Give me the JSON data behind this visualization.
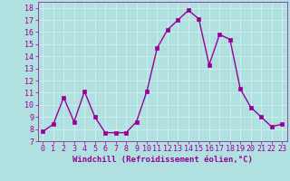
{
  "x": [
    0,
    1,
    2,
    3,
    4,
    5,
    6,
    7,
    8,
    9,
    10,
    11,
    12,
    13,
    14,
    15,
    16,
    17,
    18,
    19,
    20,
    21,
    22,
    23
  ],
  "y": [
    7.8,
    8.4,
    10.6,
    8.6,
    11.1,
    9.0,
    7.7,
    7.7,
    7.7,
    8.6,
    11.1,
    14.7,
    16.2,
    17.0,
    17.8,
    17.1,
    13.3,
    15.8,
    15.4,
    11.3,
    9.8,
    9.0,
    8.2,
    8.4
  ],
  "line_color": "#990099",
  "marker": "s",
  "markersize": 2.5,
  "linewidth": 1.0,
  "xlabel": "Windchill (Refroidissement éolien,°C)",
  "xlim": [
    -0.5,
    23.5
  ],
  "ylim": [
    7,
    18.5
  ],
  "yticks": [
    7,
    8,
    9,
    10,
    11,
    12,
    13,
    14,
    15,
    16,
    17,
    18
  ],
  "xticks": [
    0,
    1,
    2,
    3,
    4,
    5,
    6,
    7,
    8,
    9,
    10,
    11,
    12,
    13,
    14,
    15,
    16,
    17,
    18,
    19,
    20,
    21,
    22,
    23
  ],
  "background_color": "#b0e0e0",
  "grid_color": "#d0f0f0",
  "line_label_color": "#990099",
  "xlabel_fontsize": 6.5,
  "tick_fontsize": 6,
  "font_family": "monospace"
}
